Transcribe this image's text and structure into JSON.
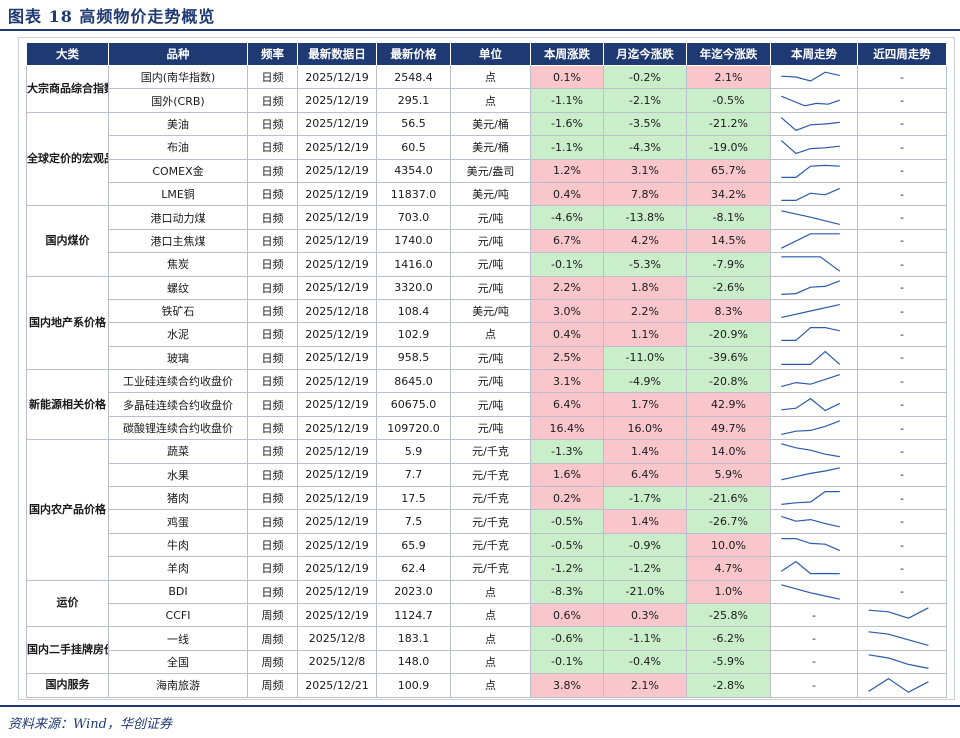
{
  "title": "图表 18   高频物价走势概览",
  "source": "资料来源：Wind，华创证券",
  "colors": {
    "header": "#1f3a73",
    "up": "#f8c6cb",
    "down": "#c9eec9",
    "spark": "#2b5aa8"
  },
  "headers": [
    "大类",
    "品种",
    "频率",
    "最新数据日",
    "最新价格",
    "单位",
    "本周涨跌",
    "月迄今涨跌",
    "年迄今涨跌",
    "本周走势",
    "近四周走势"
  ],
  "groups": [
    {
      "name": "大宗商品综合指数",
      "rows": [
        {
          "item": "国内(南华指数)",
          "freq": "日频",
          "date": "2025/12/19",
          "price": "2548.4",
          "unit": "点",
          "w": "0.1%",
          "m": "-0.2%",
          "y": "2.1%",
          "week": [
            0.55,
            0.5,
            0.25,
            0.8,
            0.6
          ],
          "four": "-"
        },
        {
          "item": "国外(CRB)",
          "freq": "日频",
          "date": "2025/12/19",
          "price": "295.1",
          "unit": "点",
          "w": "-1.1%",
          "m": "-2.1%",
          "y": "-0.5%",
          "week": [
            0.8,
            0.5,
            0.2,
            0.35,
            0.3,
            0.55
          ],
          "four": "-"
        }
      ]
    },
    {
      "name": "全球定价的宏观品种",
      "rows": [
        {
          "item": "美油",
          "freq": "日频",
          "date": "2025/12/19",
          "price": "56.5",
          "unit": "美元/桶",
          "w": "-1.6%",
          "m": "-3.5%",
          "y": "-21.2%",
          "week": [
            0.9,
            0.1,
            0.45,
            0.5,
            0.6
          ],
          "four": "-"
        },
        {
          "item": "布油",
          "freq": "日频",
          "date": "2025/12/19",
          "price": "60.5",
          "unit": "美元/桶",
          "w": "-1.1%",
          "m": "-4.3%",
          "y": "-19.0%",
          "week": [
            0.9,
            0.1,
            0.4,
            0.45,
            0.55
          ],
          "four": "-"
        },
        {
          "item": "COMEX金",
          "freq": "日频",
          "date": "2025/12/19",
          "price": "4354.0",
          "unit": "美元/盎司",
          "w": "1.2%",
          "m": "3.1%",
          "y": "65.7%",
          "week": [
            0.1,
            0.1,
            0.8,
            0.85,
            0.8
          ],
          "four": "-"
        },
        {
          "item": "LME铜",
          "freq": "日频",
          "date": "2025/12/19",
          "price": "11837.0",
          "unit": "美元/吨",
          "w": "0.4%",
          "m": "7.8%",
          "y": "34.2%",
          "week": [
            0.1,
            0.1,
            0.55,
            0.45,
            0.85
          ],
          "four": "-"
        }
      ]
    },
    {
      "name": "国内煤价",
      "rows": [
        {
          "item": "港口动力煤",
          "freq": "日频",
          "date": "2025/12/19",
          "price": "703.0",
          "unit": "元/吨",
          "w": "-4.6%",
          "m": "-13.8%",
          "y": "-8.1%",
          "week": [
            0.95,
            0.55,
            0.1
          ],
          "four": "-"
        },
        {
          "item": "港口主焦煤",
          "freq": "日频",
          "date": "2025/12/19",
          "price": "1740.0",
          "unit": "元/吨",
          "w": "6.7%",
          "m": "4.2%",
          "y": "14.5%",
          "week": [
            0.05,
            0.95,
            0.95
          ],
          "four": "-"
        },
        {
          "item": "焦炭",
          "freq": "日频",
          "date": "2025/12/19",
          "price": "1416.0",
          "unit": "元/吨",
          "w": "-0.1%",
          "m": "-5.3%",
          "y": "-7.9%",
          "week": [
            0.95,
            0.95,
            0.95,
            0.05
          ],
          "four": "-"
        }
      ]
    },
    {
      "name": "国内地产系价格",
      "rows": [
        {
          "item": "螺纹",
          "freq": "日频",
          "date": "2025/12/19",
          "price": "3320.0",
          "unit": "元/吨",
          "w": "2.2%",
          "m": "1.8%",
          "y": "-2.6%",
          "week": [
            0.1,
            0.15,
            0.55,
            0.6,
            0.95
          ],
          "four": "-"
        },
        {
          "item": "铁矿石",
          "freq": "日频",
          "date": "2025/12/18",
          "price": "108.4",
          "unit": "美元/吨",
          "w": "3.0%",
          "m": "2.2%",
          "y": "8.3%",
          "week": [
            0.1,
            0.5,
            0.9
          ],
          "four": "-"
        },
        {
          "item": "水泥",
          "freq": "日频",
          "date": "2025/12/19",
          "price": "102.9",
          "unit": "点",
          "w": "0.4%",
          "m": "1.1%",
          "y": "-20.9%",
          "week": [
            0.1,
            0.1,
            0.9,
            0.9,
            0.7
          ],
          "four": "-"
        },
        {
          "item": "玻璃",
          "freq": "日频",
          "date": "2025/12/19",
          "price": "958.5",
          "unit": "元/吨",
          "w": "2.5%",
          "m": "-11.0%",
          "y": "-39.6%",
          "week": [
            0.1,
            0.1,
            0.1,
            0.9,
            0.1
          ],
          "four": "-"
        }
      ]
    },
    {
      "name": "新能源相关价格",
      "rows": [
        {
          "item": "工业硅连续合约收盘价",
          "freq": "日频",
          "date": "2025/12/19",
          "price": "8645.0",
          "unit": "元/吨",
          "w": "3.1%",
          "m": "-4.9%",
          "y": "-20.8%",
          "week": [
            0.15,
            0.4,
            0.3,
            0.6,
            0.9
          ],
          "four": "-"
        },
        {
          "item": "多晶硅连续合约收盘价",
          "freq": "日频",
          "date": "2025/12/19",
          "price": "60675.0",
          "unit": "元/吨",
          "w": "6.4%",
          "m": "1.7%",
          "y": "42.9%",
          "week": [
            0.2,
            0.3,
            0.9,
            0.15,
            0.6
          ],
          "four": "-"
        },
        {
          "item": "碳酸锂连续合约收盘价",
          "freq": "日频",
          "date": "2025/12/19",
          "price": "109720.0",
          "unit": "元/吨",
          "w": "16.4%",
          "m": "16.0%",
          "y": "49.7%",
          "week": [
            0.1,
            0.3,
            0.35,
            0.6,
            0.95
          ],
          "four": "-"
        }
      ]
    },
    {
      "name": "国内农产品价格",
      "rows": [
        {
          "item": "蔬菜",
          "freq": "日频",
          "date": "2025/12/19",
          "price": "5.9",
          "unit": "元/千克",
          "w": "-1.3%",
          "m": "1.4%",
          "y": "14.0%",
          "week": [
            0.95,
            0.7,
            0.55,
            0.3,
            0.15
          ],
          "four": "-"
        },
        {
          "item": "水果",
          "freq": "日频",
          "date": "2025/12/19",
          "price": "7.7",
          "unit": "元/千克",
          "w": "1.6%",
          "m": "6.4%",
          "y": "5.9%",
          "week": [
            0.2,
            0.4,
            0.6,
            0.75,
            0.95
          ],
          "four": "-"
        },
        {
          "item": "猪肉",
          "freq": "日频",
          "date": "2025/12/19",
          "price": "17.5",
          "unit": "元/千克",
          "w": "0.2%",
          "m": "-1.7%",
          "y": "-21.6%",
          "week": [
            0.1,
            0.2,
            0.25,
            0.9,
            0.9
          ],
          "four": "-"
        },
        {
          "item": "鸡蛋",
          "freq": "日频",
          "date": "2025/12/19",
          "price": "7.5",
          "unit": "元/千克",
          "w": "-0.5%",
          "m": "1.4%",
          "y": "-26.7%",
          "week": [
            0.85,
            0.55,
            0.65,
            0.4,
            0.2
          ],
          "four": "-"
        },
        {
          "item": "牛肉",
          "freq": "日频",
          "date": "2025/12/19",
          "price": "65.9",
          "unit": "元/千克",
          "w": "-0.5%",
          "m": "-0.9%",
          "y": "10.0%",
          "week": [
            0.9,
            0.9,
            0.6,
            0.55,
            0.15
          ],
          "four": "-"
        },
        {
          "item": "羊肉",
          "freq": "日频",
          "date": "2025/12/19",
          "price": "62.4",
          "unit": "元/千克",
          "w": "-1.2%",
          "m": "-1.2%",
          "y": "4.7%",
          "week": [
            0.3,
            0.9,
            0.15,
            0.15,
            0.15
          ],
          "four": "-"
        }
      ]
    },
    {
      "name": "运价",
      "rows": [
        {
          "item": "BDI",
          "freq": "日频",
          "date": "2025/12/19",
          "price": "2023.0",
          "unit": "点",
          "w": "-8.3%",
          "m": "-21.0%",
          "y": "1.0%",
          "week": [
            0.95,
            0.7,
            0.45,
            0.25,
            0.05
          ],
          "four": "-"
        },
        {
          "item": "CCFI",
          "freq": "周频",
          "date": "2025/12/19",
          "price": "1124.7",
          "unit": "点",
          "w": "0.6%",
          "m": "0.3%",
          "y": "-25.8%",
          "week": "-",
          "four": [
            0.8,
            0.7,
            0.3,
            0.95
          ]
        }
      ]
    },
    {
      "name": "国内二手挂牌房价",
      "rows": [
        {
          "item": "一线",
          "freq": "周频",
          "date": "2025/12/8",
          "price": "183.1",
          "unit": "点",
          "w": "-0.6%",
          "m": "-1.1%",
          "y": "-6.2%",
          "week": "-",
          "four": [
            0.95,
            0.8,
            0.45,
            0.1
          ]
        },
        {
          "item": "全国",
          "freq": "周频",
          "date": "2025/12/8",
          "price": "148.0",
          "unit": "点",
          "w": "-0.1%",
          "m": "-0.4%",
          "y": "-5.9%",
          "week": "-",
          "four": [
            0.95,
            0.75,
            0.35,
            0.1
          ]
        }
      ]
    },
    {
      "name": "国内服务",
      "rows": [
        {
          "item": "海南旅游",
          "freq": "周频",
          "date": "2025/12/21",
          "price": "100.9",
          "unit": "点",
          "w": "3.8%",
          "m": "2.1%",
          "y": "-2.8%",
          "week": "-",
          "four": [
            0.1,
            0.9,
            0.05,
            0.7
          ]
        }
      ]
    }
  ]
}
